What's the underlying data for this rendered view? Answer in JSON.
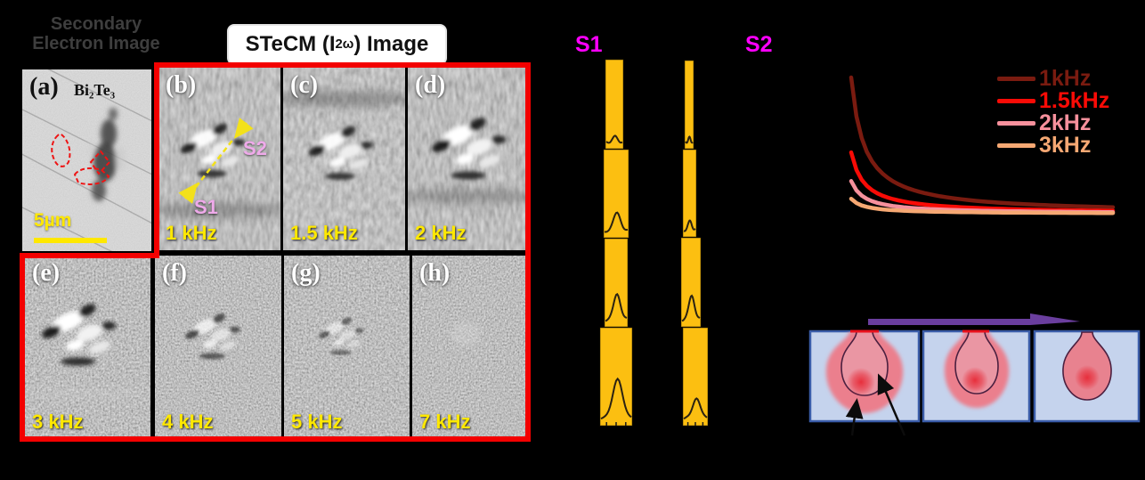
{
  "header": {
    "sem_title_line1": "Secondary",
    "sem_title_line2": "Electron Image",
    "stecm_title_prefix": "STeCM (I",
    "stecm_title_sub": "2ω",
    "stecm_title_suffix": ") Image"
  },
  "panel_a": {
    "label": "(a)",
    "material": "Bi₂Te₃",
    "scalebar": "5µm"
  },
  "stecm_panels": [
    {
      "label": "(b)",
      "freq": "1 kHz"
    },
    {
      "label": "(c)",
      "freq": "1.5 kHz"
    },
    {
      "label": "(d)",
      "freq": "2 kHz"
    },
    {
      "label": "(e)",
      "freq": "3 kHz"
    },
    {
      "label": "(f)",
      "freq": "4 kHz"
    },
    {
      "label": "(g)",
      "freq": "5 kHz"
    },
    {
      "label": "(h)",
      "freq": "7 kHz"
    }
  ],
  "panel_b_annotations": {
    "s1": "S1",
    "s2": "S2"
  },
  "profiles": {
    "s1": {
      "label": "S1",
      "segment_peaks": [
        0.05,
        0.2,
        0.3,
        0.42
      ]
    },
    "s2": {
      "label": "S2",
      "segment_peaks": [
        0.04,
        0.1,
        0.28,
        0.22
      ]
    },
    "bar_color": "#fcbf11",
    "trace_color": "#2b2212"
  },
  "chart_data": {
    "type": "line",
    "title": "",
    "xlabel": "",
    "ylabel": "",
    "axes_visible": false,
    "legend_position": "top-right",
    "x_range_relative": [
      0,
      1
    ],
    "shape": "1/x-style decay curves converging to a common asymptote",
    "series": [
      {
        "name": "1kHz",
        "color": "#7a1b10",
        "relative_peak": 1.0
      },
      {
        "name": "1.5kHz",
        "color": "#f90b06",
        "relative_peak": 0.45
      },
      {
        "name": "2kHz",
        "color": "#f6909c",
        "relative_peak": 0.24
      },
      {
        "name": "3kHz",
        "color": "#f6a873",
        "relative_peak": 0.11
      }
    ]
  },
  "diagram": {
    "box_count": 3,
    "scan_arrow_color": "#6a3e9e",
    "box_fill": "#c5d3ed",
    "box_border": "#3a5ca8",
    "melt_outer_color": "#eb7f8d",
    "melt_inner_color": "#ea96a3",
    "outline_color": "#4b2040",
    "core_color": "#e72f3c",
    "contact_line_color": "#e8111d"
  },
  "accents": {
    "red_box_border": "#f30000",
    "dashed_outline_red": "#ee1414",
    "freq_label_yellow": "#ffe800",
    "profile_label_magenta": "#ff00ff",
    "annotation_plum": "#efaaea",
    "arrow_yellow": "#f3e11a"
  }
}
